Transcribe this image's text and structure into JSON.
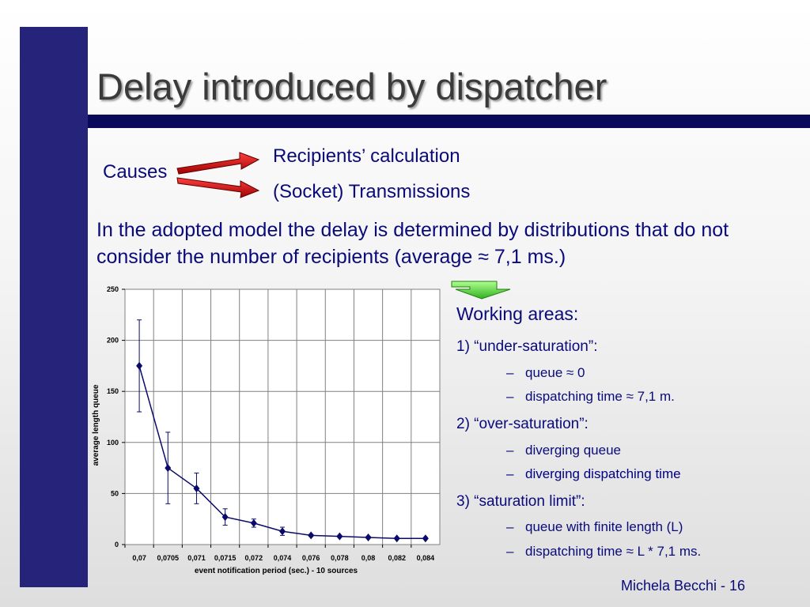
{
  "slide": {
    "title": "Delay introduced by dispatcher",
    "causes_label": "Causes",
    "cause_items": [
      "Recipients’ calculation",
      "(Socket) Transmissions"
    ],
    "paragraph": "In the adopted model the delay is determined by distributions that do not consider the number of recipients (average ≈ 7,1 ms.)",
    "working_areas_title": "Working areas:",
    "areas": [
      {
        "label": "1) “under-saturation”:",
        "items": [
          "queue ≈ 0",
          "dispatching time ≈ 7,1 m."
        ]
      },
      {
        "label": "2) “over-saturation”:",
        "items": [
          "diverging queue",
          "diverging dispatching time"
        ]
      },
      {
        "label": "3) “saturation limit”:",
        "items": [
          "queue with finite length (L)",
          "dispatching time ≈ L * 7,1 ms."
        ]
      }
    ],
    "footer": "Michela Becchi - 16"
  },
  "chart_data": {
    "type": "line",
    "xlabel": "event notification period (sec.) - 10 sources",
    "ylabel": "average length queue",
    "categories": [
      "0,07",
      "0,0705",
      "0,071",
      "0,0715",
      "0,072",
      "0,074",
      "0,076",
      "0,078",
      "0,08",
      "0,082",
      "0,084"
    ],
    "yticks": [
      "0",
      "50",
      "100",
      "150",
      "200",
      "250"
    ],
    "ylim": [
      0,
      250
    ],
    "grid": "vertical and horizontal",
    "series": [
      {
        "values": [
          175,
          75,
          55,
          27,
          21,
          13,
          9,
          8,
          7,
          6,
          6
        ],
        "err_low": [
          130,
          40,
          40,
          19,
          17,
          9,
          8,
          7,
          6,
          6,
          6
        ],
        "err_high": [
          220,
          110,
          70,
          35,
          25,
          17,
          10,
          9,
          8,
          7,
          7
        ],
        "color": "#0a0a6a"
      }
    ]
  }
}
